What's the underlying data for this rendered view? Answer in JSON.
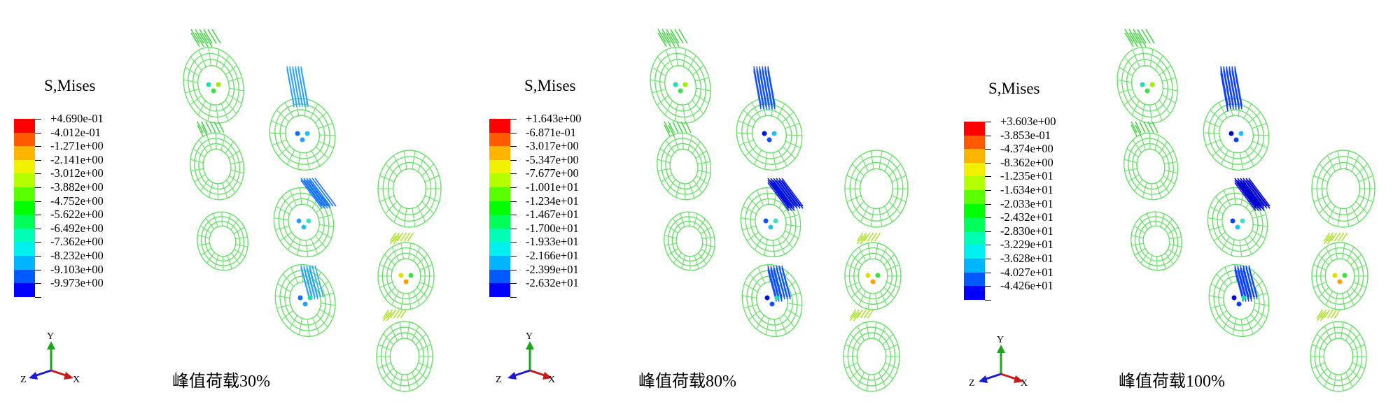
{
  "legend_colors": [
    "#ff0000",
    "#ff5a00",
    "#ffb400",
    "#f0f000",
    "#b4ff00",
    "#5aff00",
    "#00ff00",
    "#00ff5a",
    "#00ffb4",
    "#00f0f0",
    "#00b4ff",
    "#005aff",
    "#0000ff"
  ],
  "mesh_color": "#66e066",
  "panels": [
    {
      "legend_title": "S,Mises",
      "legend_values": [
        "+4.690e-01",
        "-4.012e-01",
        "-1.271e+00",
        "-2.141e+00",
        "-3.012e+00",
        "-3.882e+00",
        "-4.752e+00",
        "-5.622e+00",
        "-6.492e+00",
        "-7.362e+00",
        "-8.232e+00",
        "-9.103e+00",
        "-9.973e+00"
      ],
      "axis_labels": {
        "y": "Y",
        "z": "Z",
        "x": "X"
      },
      "caption": "峰值荷载30%"
    },
    {
      "legend_title": "S,Mises",
      "legend_values": [
        "+1.643e+00",
        "-6.871e-01",
        "-3.017e+00",
        "-5.347e+00",
        "-7.677e+00",
        "-1.001e+01",
        "-1.234e+01",
        "-1.467e+01",
        "-1.700e+01",
        "-1.933e+01",
        "-2.166e+01",
        "-2.399e+01",
        "-2.632e+01"
      ],
      "axis_labels": {
        "y": "Y",
        "z": "Z",
        "x": "X"
      },
      "caption": "峰值荷载80%"
    },
    {
      "legend_title": "S,Mises",
      "legend_values": [
        "+3.603e+00",
        "-3.853e-01",
        "-4.374e+00",
        "-8.362e+00",
        "-1.235e+01",
        "-1.634e+01",
        "-2.033e+01",
        "-2.432e+01",
        "-2.830e+01",
        "-3.229e+01",
        "-3.628e+01",
        "-4.027e+01",
        "-4.426e+01"
      ],
      "axis_labels": {
        "y": "Y",
        "z": "Z",
        "x": "X"
      },
      "caption": "峰值荷载100%"
    }
  ]
}
